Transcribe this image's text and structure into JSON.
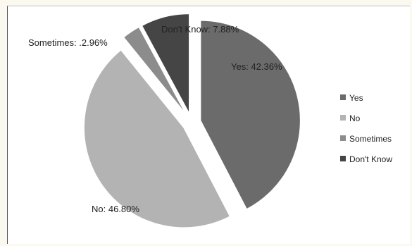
{
  "chart_data": {
    "type": "pie",
    "title": "",
    "categories": [
      "Yes",
      "No",
      "Sometimes",
      "Don't Know"
    ],
    "values": [
      42.36,
      46.8,
      2.96,
      7.88
    ],
    "labels": [
      "Yes: 42.36%",
      "No: 46.80%",
      "Sometimes:  .2.96%",
      "Don't Know: 7.88%"
    ],
    "colors": [
      "#6b6b6b",
      "#b3b3b3",
      "#8c8c8c",
      "#454545"
    ],
    "exploded": true,
    "legend": {
      "position": "right",
      "entries": [
        "Yes",
        "No",
        "Sometimes",
        "Don't Know"
      ]
    },
    "grid": false
  }
}
